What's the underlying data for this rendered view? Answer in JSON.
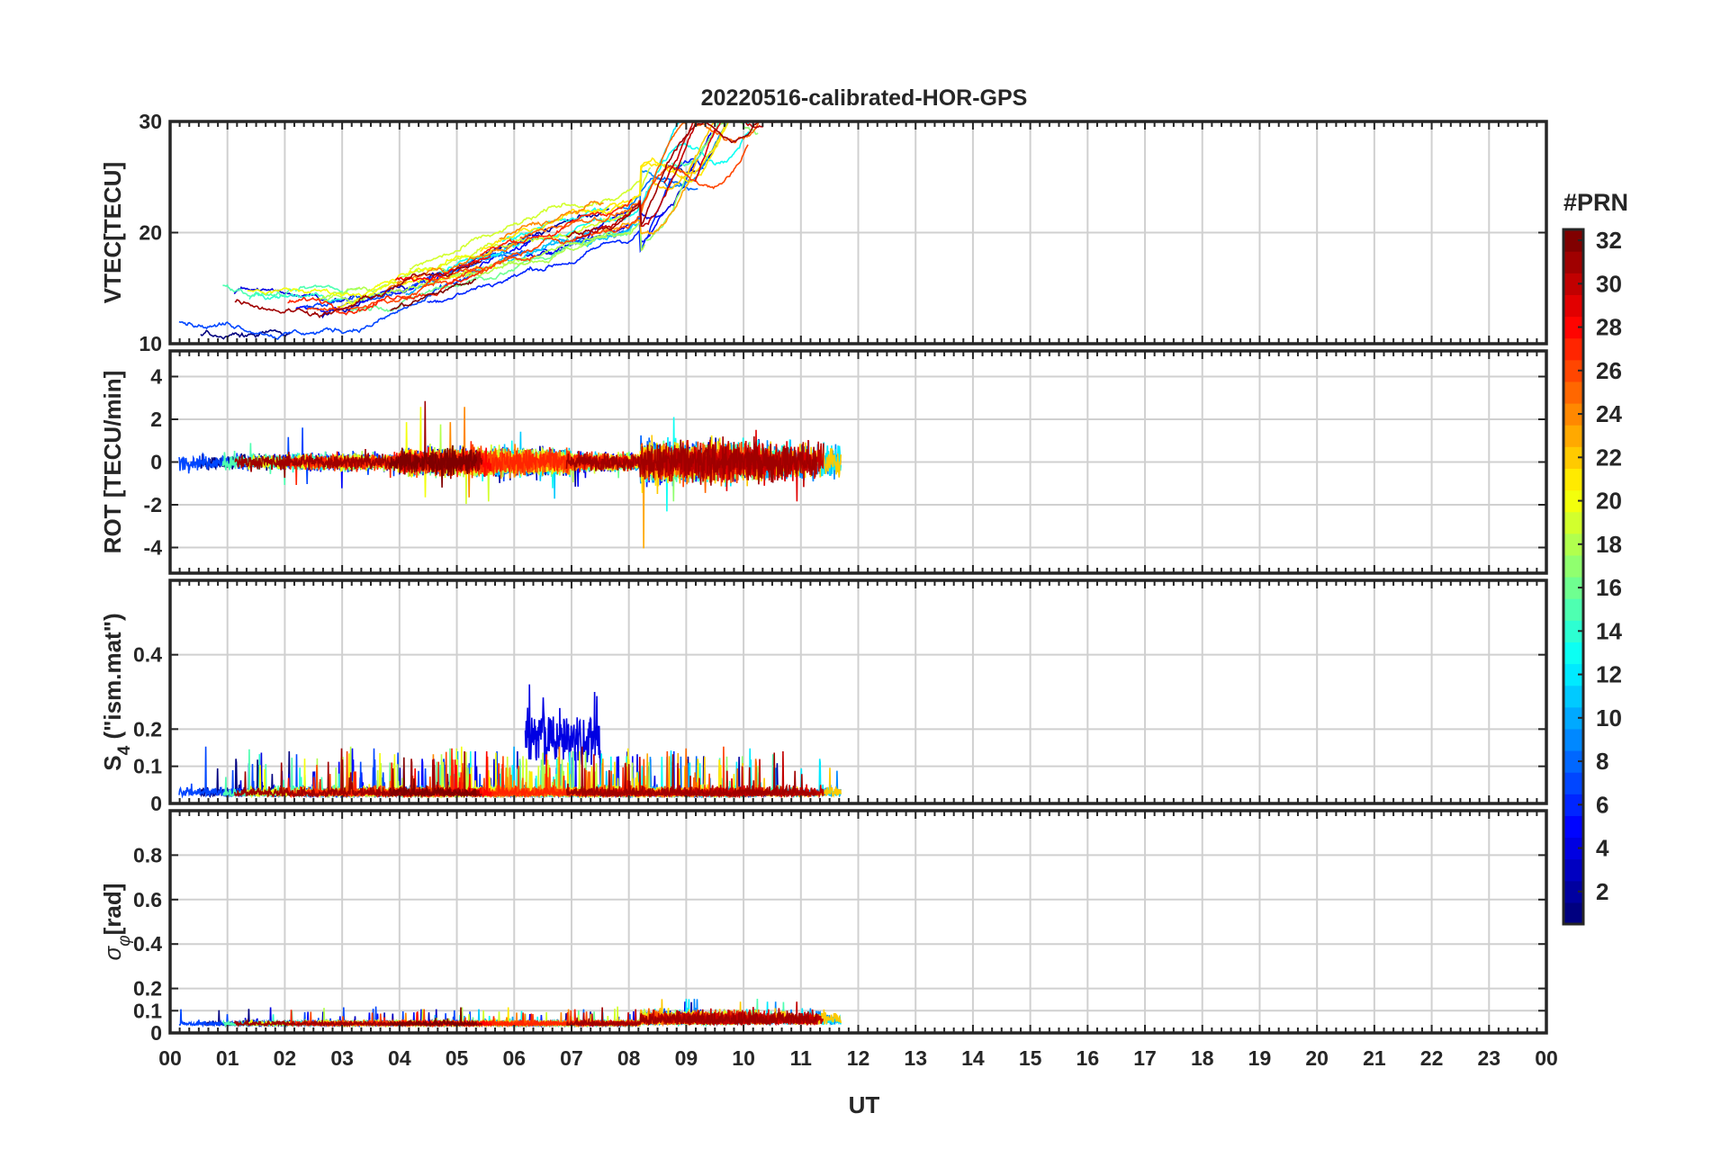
{
  "chart_data": {
    "type": "line",
    "title": "20220516-calibrated-HOR-GPS",
    "xlabel": "UT",
    "x_tick_labels": [
      "00",
      "01",
      "02",
      "03",
      "04",
      "05",
      "06",
      "07",
      "08",
      "09",
      "10",
      "11",
      "12",
      "13",
      "14",
      "15",
      "16",
      "17",
      "18",
      "19",
      "20",
      "21",
      "22",
      "23",
      "00"
    ],
    "xlim": [
      0,
      24
    ],
    "data_end_hour": 11.7,
    "series_note": "One line per GPS PRN (1-32) in each panel, coloured by PRN; values are approximate envelopes read from the figure",
    "panels": [
      {
        "id": "vtec",
        "ylabel": "VTEC[TECU]",
        "ylim": [
          10,
          30
        ],
        "y_ticks": [
          10,
          20,
          30
        ],
        "y_tick_labels": [
          "10",
          "20",
          "30"
        ],
        "typical_range": [
          11,
          26
        ]
      },
      {
        "id": "rot",
        "ylabel": "ROT [TECU/min]",
        "ylim": [
          -5.2,
          5.2
        ],
        "y_ticks": [
          -4,
          -2,
          0,
          2,
          4
        ],
        "y_tick_labels": [
          "-4",
          "-2",
          "0",
          "2",
          "4"
        ],
        "typical_range": [
          -4,
          3
        ]
      },
      {
        "id": "s4",
        "ylabel_main": "S",
        "ylabel_sub": "4",
        "ylabel_rest": " (\"ism.mat\")",
        "ylim": [
          0,
          0.6
        ],
        "y_ticks": [
          0,
          0.1,
          0.2,
          0.4
        ],
        "y_tick_labels": [
          "0",
          "0.1",
          "0.2",
          "0.4"
        ],
        "typical_range": [
          0,
          0.4
        ]
      },
      {
        "id": "sigma",
        "ylabel_main": "σ",
        "ylabel_sub": "φ",
        "ylabel_rest": "[rad]",
        "ylim": [
          0,
          1
        ],
        "y_ticks": [
          0,
          0.1,
          0.2,
          0.4,
          0.6,
          0.8
        ],
        "y_tick_labels": [
          "0",
          "0.1",
          "0.2",
          "0.4",
          "0.6",
          "0.8"
        ],
        "typical_range": [
          0,
          0.22
        ]
      }
    ],
    "colorbar": {
      "label": "#PRN",
      "range": [
        1,
        32
      ],
      "ticks": [
        2,
        4,
        6,
        8,
        10,
        12,
        14,
        16,
        18,
        20,
        22,
        24,
        26,
        28,
        30,
        32
      ],
      "tick_labels": [
        "2",
        "4",
        "6",
        "8",
        "10",
        "12",
        "14",
        "16",
        "18",
        "20",
        "22",
        "24",
        "26",
        "28",
        "30",
        "32"
      ],
      "colormap": "jet"
    }
  }
}
